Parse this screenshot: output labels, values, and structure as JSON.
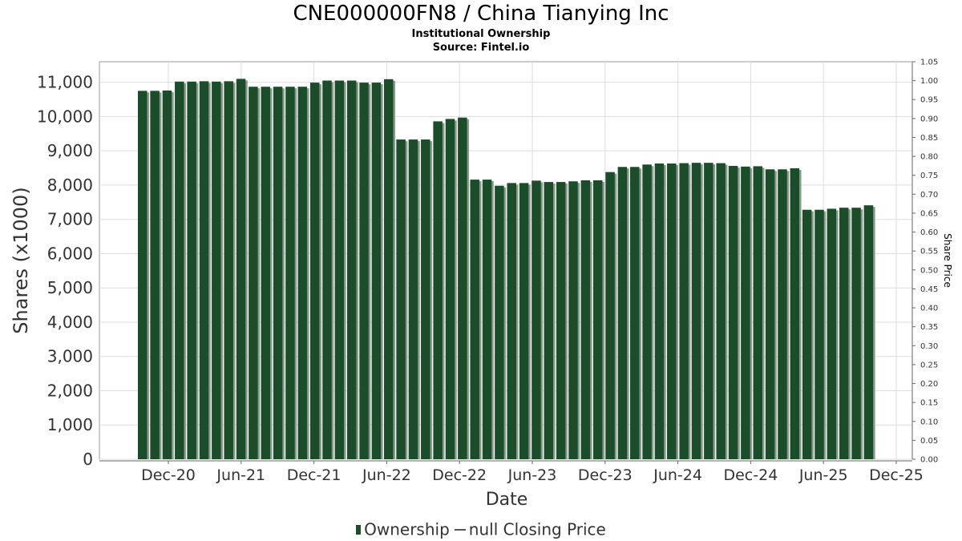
{
  "header": {
    "title": "CNE000000FN8 / China Tianying Inc",
    "subtitle": "Institutional Ownership",
    "source": "Source: Fintel.io"
  },
  "legend": {
    "ownership": "Ownership",
    "price": "null Closing Price"
  },
  "colors": {
    "bar": "#1b4d2b",
    "bar_shadow": "#8a9a8a",
    "grid": "#dddddd",
    "axis_text": "#333333"
  },
  "chart_data": {
    "type": "bar",
    "title": "CNE000000FN8 / China Tianying Inc",
    "subtitle": "Institutional Ownership",
    "xlabel": "Date",
    "ylabel": "Shares (x1000)",
    "y2label": "Share Price",
    "ylim": [
      0,
      11600
    ],
    "y2lim": [
      0,
      1.05
    ],
    "yticks": [
      0,
      1000,
      2000,
      3000,
      4000,
      5000,
      6000,
      7000,
      8000,
      9000,
      10000,
      11000
    ],
    "y2ticks": [
      "0.00",
      "0.05",
      "0.10",
      "0.15",
      "0.20",
      "0.25",
      "0.30",
      "0.35",
      "0.40",
      "0.45",
      "0.50",
      "0.55",
      "0.60",
      "0.65",
      "0.70",
      "0.75",
      "0.80",
      "0.85",
      "0.90",
      "0.95",
      "1.00",
      "1.05"
    ],
    "xticks": [
      "Dec-20",
      "Jun-21",
      "Dec-21",
      "Jun-22",
      "Dec-22",
      "Jun-23",
      "Dec-23",
      "Jun-24",
      "Dec-24",
      "Jun-25",
      "Dec-25"
    ],
    "grid": true,
    "legend_position": "bottom",
    "series": [
      {
        "name": "Ownership",
        "values": [
          10750,
          10750,
          10760,
          11020,
          11020,
          11030,
          11020,
          11030,
          11100,
          10870,
          10870,
          10870,
          10870,
          10870,
          10990,
          11050,
          11050,
          11050,
          10990,
          10990,
          11090,
          9330,
          9330,
          9330,
          9860,
          9930,
          9970,
          8160,
          8160,
          7980,
          8060,
          8060,
          8130,
          8090,
          8090,
          8110,
          8140,
          8140,
          8380,
          8530,
          8530,
          8600,
          8630,
          8630,
          8640,
          8650,
          8650,
          8640,
          8560,
          8540,
          8550,
          8460,
          8460,
          8490,
          7280,
          7280,
          7310,
          7340,
          7340,
          7410
        ]
      }
    ]
  }
}
